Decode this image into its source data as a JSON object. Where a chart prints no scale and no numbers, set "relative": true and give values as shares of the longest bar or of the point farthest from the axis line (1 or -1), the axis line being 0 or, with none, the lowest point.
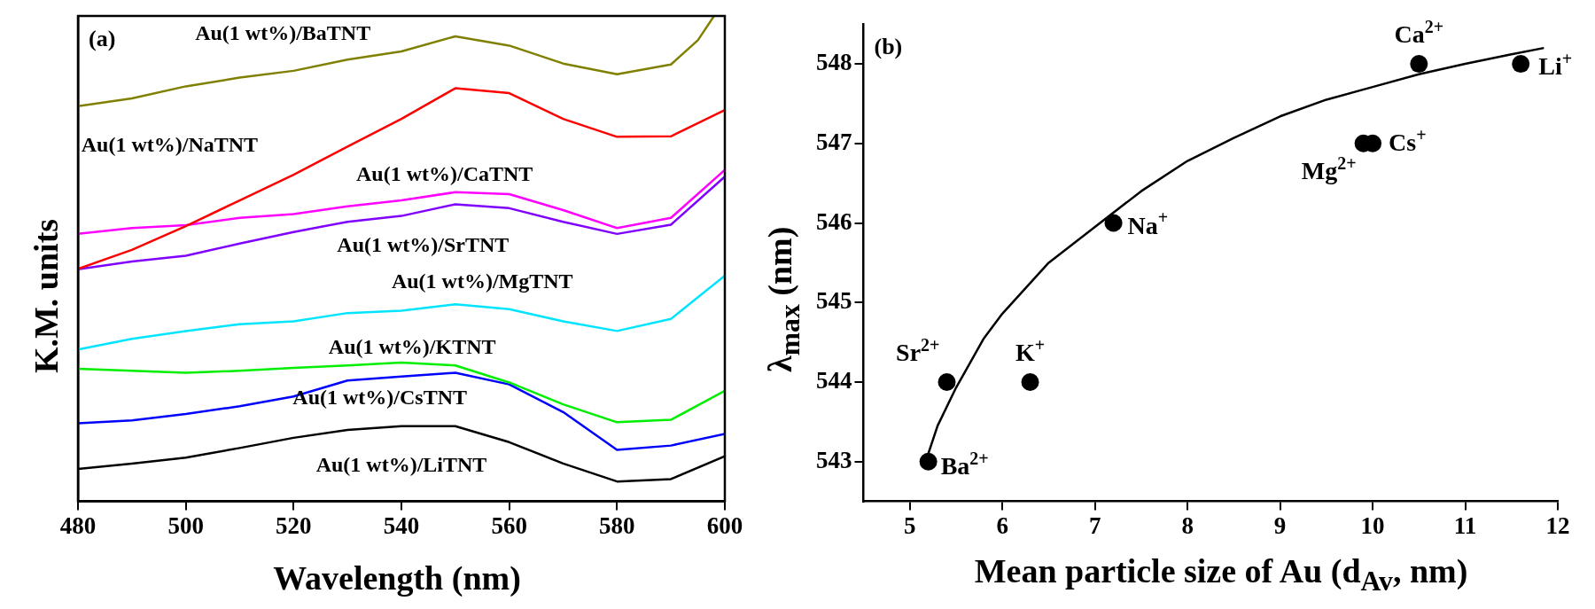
{
  "chart_data": [
    {
      "type": "line",
      "relative": true,
      "xlabel": "Wavelength (nm)",
      "ylabel": "K.M. units",
      "annotations": [
        "(a)"
      ],
      "xlim": [
        480,
        600
      ],
      "xticks": [
        480,
        500,
        520,
        540,
        560,
        580,
        600
      ],
      "grid": false,
      "x": [
        480,
        490,
        500,
        510,
        520,
        530,
        540,
        550,
        560,
        570,
        580,
        590,
        600
      ],
      "series": [
        {
          "name": "Au(1 wt%)/BaTNT",
          "color": "#808000",
          "x": [
            480,
            490,
            500,
            510,
            520,
            530,
            540,
            550,
            560,
            570,
            580,
            590,
            595,
            598
          ],
          "values": [
            0.814,
            0.83,
            0.855,
            0.873,
            0.887,
            0.91,
            0.927,
            0.958,
            0.939,
            0.902,
            0.88,
            0.9,
            0.95,
            1.0
          ]
        },
        {
          "name": "Au(1 wt%)/NaTNT",
          "color": "#ff0000",
          "values": [
            0.479,
            0.518,
            0.567,
            0.62,
            0.673,
            0.731,
            0.788,
            0.851,
            0.841,
            0.788,
            0.751,
            0.752,
            0.806
          ]
        },
        {
          "name": "Au(1 wt%)/CaTNT",
          "color": "#ff00ff",
          "values": [
            0.551,
            0.563,
            0.569,
            0.584,
            0.592,
            0.608,
            0.62,
            0.637,
            0.633,
            0.6,
            0.563,
            0.584,
            0.683
          ]
        },
        {
          "name": "Au(1 wt%)/SrTNT",
          "color": "#8000ff",
          "values": [
            0.478,
            0.494,
            0.506,
            0.531,
            0.555,
            0.576,
            0.588,
            0.612,
            0.604,
            0.576,
            0.551,
            0.57,
            0.669
          ]
        },
        {
          "name": "Au(1 wt%)/MgTNT",
          "color": "#00e5ff",
          "values": [
            0.313,
            0.335,
            0.351,
            0.365,
            0.371,
            0.388,
            0.393,
            0.406,
            0.396,
            0.371,
            0.351,
            0.376,
            0.465
          ]
        },
        {
          "name": "Au(1 wt%)/KTNT",
          "color": "#00ee00",
          "values": [
            0.273,
            0.269,
            0.265,
            0.269,
            0.275,
            0.28,
            0.286,
            0.28,
            0.245,
            0.2,
            0.163,
            0.168,
            0.228
          ]
        },
        {
          "name": "Au(1 wt%)/CsTNT",
          "color": "#0000ff",
          "values": [
            0.161,
            0.167,
            0.18,
            0.196,
            0.216,
            0.249,
            0.257,
            0.265,
            0.241,
            0.184,
            0.106,
            0.115,
            0.139
          ]
        },
        {
          "name": "Au(1 wt%)/LiTNT",
          "color": "#000000",
          "values": [
            0.067,
            0.078,
            0.09,
            0.11,
            0.131,
            0.147,
            0.155,
            0.155,
            0.122,
            0.078,
            0.041,
            0.046,
            0.093
          ]
        }
      ]
    },
    {
      "type": "scatter",
      "xlabel": "Mean particle size of Au (d$_{Av}$, nm)",
      "ylabel": "λ$_{max}$ (nm)",
      "xlim": [
        4.5,
        12
      ],
      "xticks": [
        5,
        6,
        7,
        8,
        9,
        10,
        11,
        12
      ],
      "ylim": [
        542.5,
        548.5
      ],
      "yticks": [
        543,
        544,
        545,
        546,
        547,
        548
      ],
      "grid": false,
      "annotations": [
        "(b)",
        {
          "text": "Ba$^{2+}$",
          "x": 5.2,
          "y": 543
        },
        {
          "text": "Sr$^{2+}$",
          "x": 5.4,
          "y": 544
        },
        {
          "text": "K$^{+}$",
          "x": 6.3,
          "y": 544
        },
        {
          "text": "Na$^{+}$",
          "x": 7.2,
          "y": 546
        },
        {
          "text": "Mg$^{2+}$",
          "x": 9.9,
          "y": 547
        },
        {
          "text": "Cs$^{+}$",
          "x": 10,
          "y": 547
        },
        {
          "text": "Ca$^{2+}$",
          "x": 10.5,
          "y": 548
        },
        {
          "text": "Li$^{+}$",
          "x": 11.6,
          "y": 548
        }
      ],
      "series": [
        {
          "marker": "circle",
          "color": "#000000",
          "x": [
            5.2,
            5.4,
            6.3,
            7.2,
            9.9,
            10,
            10.5,
            11.6
          ],
          "values": [
            543,
            544,
            544,
            546,
            547,
            547,
            548,
            548
          ]
        },
        {
          "type": "line",
          "color": "#000000",
          "x": [
            5.2,
            5.3,
            5.5,
            5.8,
            6,
            6.5,
            7,
            7.5,
            8,
            8.5,
            9,
            9.5,
            10,
            10.5,
            11,
            11.5,
            11.85
          ],
          "values": [
            543.1,
            543.45,
            543.93,
            544.55,
            544.86,
            545.5,
            545.95,
            546.4,
            546.78,
            547.07,
            547.34,
            547.55,
            547.71,
            547.87,
            548.0,
            548.12,
            548.2
          ]
        }
      ]
    }
  ]
}
